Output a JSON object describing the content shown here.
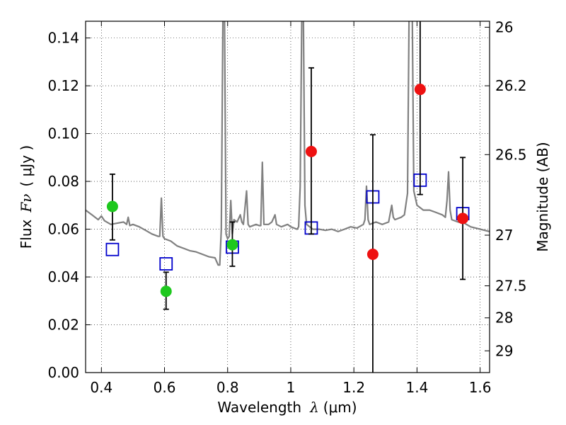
{
  "chart_data": {
    "type": "scatter",
    "xlabel_text": "Wavelength",
    "xlabel_symbol": "λ",
    "xlabel_unit": "(μm)",
    "ylabel_text": "Flux",
    "ylabel_symbol": "Fν",
    "ylabel_unit": "( μJy )",
    "y2label": "Magnitude (AB)",
    "xlim": [
      0.35,
      1.63
    ],
    "ylim": [
      0.0,
      0.147
    ],
    "grid": true,
    "x_ticks": [
      {
        "value": 0.4,
        "label": "0.4"
      },
      {
        "value": 0.6,
        "label": "0.6"
      },
      {
        "value": 0.8,
        "label": "0.8"
      },
      {
        "value": 1.0,
        "label": "1"
      },
      {
        "value": 1.2,
        "label": "1.2"
      },
      {
        "value": 1.4,
        "label": "1.4"
      },
      {
        "value": 1.6,
        "label": "1.6"
      }
    ],
    "y_ticks": [
      {
        "value": 0.0,
        "label": "0.00"
      },
      {
        "value": 0.02,
        "label": "0.02"
      },
      {
        "value": 0.04,
        "label": "0.04"
      },
      {
        "value": 0.06,
        "label": "0.06"
      },
      {
        "value": 0.08,
        "label": "0.08"
      },
      {
        "value": 0.1,
        "label": "0.10"
      },
      {
        "value": 0.12,
        "label": "0.12"
      },
      {
        "value": 0.14,
        "label": "0.14"
      }
    ],
    "y2_ticks": [
      {
        "flux": 0.1445,
        "label": "26"
      },
      {
        "flux": 0.12,
        "label": "26.2"
      },
      {
        "flux": 0.0912,
        "label": "26.5"
      },
      {
        "flux": 0.0575,
        "label": "27"
      },
      {
        "flux": 0.0363,
        "label": "27.5"
      },
      {
        "flux": 0.0229,
        "label": "28"
      },
      {
        "flux": 0.0091,
        "label": "29"
      }
    ],
    "series": [
      {
        "name": "model_spectrum",
        "kind": "line",
        "color": "#808080",
        "points": [
          [
            0.35,
            0.068
          ],
          [
            0.37,
            0.066
          ],
          [
            0.39,
            0.064
          ],
          [
            0.4,
            0.0655
          ],
          [
            0.41,
            0.0635
          ],
          [
            0.43,
            0.062
          ],
          [
            0.45,
            0.0625
          ],
          [
            0.47,
            0.063
          ],
          [
            0.48,
            0.062
          ],
          [
            0.485,
            0.065
          ],
          [
            0.49,
            0.0615
          ],
          [
            0.5,
            0.062
          ],
          [
            0.52,
            0.061
          ],
          [
            0.54,
            0.0595
          ],
          [
            0.56,
            0.058
          ],
          [
            0.58,
            0.057
          ],
          [
            0.585,
            0.057
          ],
          [
            0.59,
            0.073
          ],
          [
            0.595,
            0.057
          ],
          [
            0.6,
            0.056
          ],
          [
            0.62,
            0.055
          ],
          [
            0.64,
            0.053
          ],
          [
            0.66,
            0.052
          ],
          [
            0.68,
            0.051
          ],
          [
            0.7,
            0.0505
          ],
          [
            0.72,
            0.0495
          ],
          [
            0.74,
            0.0485
          ],
          [
            0.76,
            0.048
          ],
          [
            0.77,
            0.045
          ],
          [
            0.775,
            0.045
          ],
          [
            0.78,
            0.06
          ],
          [
            0.785,
            0.15
          ],
          [
            0.79,
            0.15
          ],
          [
            0.795,
            0.058
          ],
          [
            0.8,
            0.056
          ],
          [
            0.805,
            0.057
          ],
          [
            0.81,
            0.072
          ],
          [
            0.815,
            0.058
          ],
          [
            0.82,
            0.064
          ],
          [
            0.83,
            0.063
          ],
          [
            0.84,
            0.066
          ],
          [
            0.845,
            0.063
          ],
          [
            0.85,
            0.062
          ],
          [
            0.86,
            0.076
          ],
          [
            0.865,
            0.062
          ],
          [
            0.87,
            0.061
          ],
          [
            0.89,
            0.062
          ],
          [
            0.9,
            0.0615
          ],
          [
            0.905,
            0.0615
          ],
          [
            0.91,
            0.088
          ],
          [
            0.915,
            0.062
          ],
          [
            0.93,
            0.062
          ],
          [
            0.94,
            0.063
          ],
          [
            0.95,
            0.066
          ],
          [
            0.955,
            0.062
          ],
          [
            0.97,
            0.061
          ],
          [
            0.99,
            0.062
          ],
          [
            1.0,
            0.061
          ],
          [
            1.02,
            0.06
          ],
          [
            1.025,
            0.061
          ],
          [
            1.03,
            0.078
          ],
          [
            1.035,
            0.15
          ],
          [
            1.04,
            0.15
          ],
          [
            1.045,
            0.07
          ],
          [
            1.05,
            0.062
          ],
          [
            1.07,
            0.06
          ],
          [
            1.09,
            0.06
          ],
          [
            1.11,
            0.0595
          ],
          [
            1.13,
            0.06
          ],
          [
            1.15,
            0.059
          ],
          [
            1.17,
            0.06
          ],
          [
            1.19,
            0.061
          ],
          [
            1.21,
            0.0605
          ],
          [
            1.23,
            0.062
          ],
          [
            1.235,
            0.064
          ],
          [
            1.24,
            0.078
          ],
          [
            1.245,
            0.064
          ],
          [
            1.25,
            0.062
          ],
          [
            1.27,
            0.063
          ],
          [
            1.29,
            0.062
          ],
          [
            1.31,
            0.063
          ],
          [
            1.32,
            0.07
          ],
          [
            1.325,
            0.065
          ],
          [
            1.33,
            0.064
          ],
          [
            1.35,
            0.065
          ],
          [
            1.36,
            0.066
          ],
          [
            1.37,
            0.075
          ],
          [
            1.375,
            0.15
          ],
          [
            1.385,
            0.15
          ],
          [
            1.39,
            0.076
          ],
          [
            1.4,
            0.07
          ],
          [
            1.42,
            0.068
          ],
          [
            1.44,
            0.068
          ],
          [
            1.46,
            0.067
          ],
          [
            1.48,
            0.066
          ],
          [
            1.49,
            0.065
          ],
          [
            1.495,
            0.072
          ],
          [
            1.5,
            0.084
          ],
          [
            1.505,
            0.068
          ],
          [
            1.51,
            0.064
          ],
          [
            1.53,
            0.063
          ],
          [
            1.55,
            0.0625
          ],
          [
            1.57,
            0.061
          ],
          [
            1.6,
            0.06
          ],
          [
            1.63,
            0.059
          ]
        ]
      },
      {
        "name": "model_photometry",
        "kind": "open_square",
        "color": "#0000cc",
        "points": [
          [
            0.435,
            0.0515
          ],
          [
            0.605,
            0.0455
          ],
          [
            0.815,
            0.0525
          ],
          [
            1.065,
            0.0605
          ],
          [
            1.26,
            0.0735
          ],
          [
            1.41,
            0.0805
          ],
          [
            1.545,
            0.0665
          ]
        ]
      },
      {
        "name": "detections",
        "kind": "filled_circle_errorbar",
        "color": "#1ec81e",
        "points": [
          {
            "x": 0.435,
            "y": 0.0695,
            "lo": 0.0555,
            "hi": 0.083
          },
          {
            "x": 0.605,
            "y": 0.034,
            "lo": 0.0265,
            "hi": 0.042
          },
          {
            "x": 0.815,
            "y": 0.0535,
            "lo": 0.0445,
            "hi": 0.063
          }
        ]
      },
      {
        "name": "upper_limits",
        "kind": "filled_circle_errorbar",
        "color": "#ee1111",
        "points": [
          {
            "x": 1.065,
            "y": 0.0925,
            "lo": 0.058,
            "hi": 0.1275
          },
          {
            "x": 1.26,
            "y": 0.0495,
            "lo": 0.0,
            "hi": 0.0995
          },
          {
            "x": 1.41,
            "y": 0.1185,
            "lo": 0.0745,
            "hi": 0.147
          },
          {
            "x": 1.545,
            "y": 0.0645,
            "lo": 0.039,
            "hi": 0.09
          }
        ]
      }
    ]
  }
}
